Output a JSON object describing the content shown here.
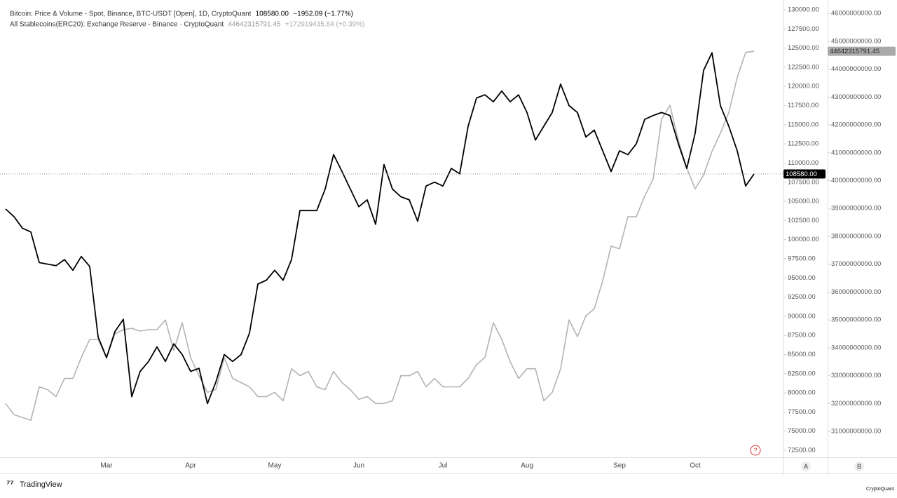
{
  "chart_data": {
    "type": "line",
    "series": [
      {
        "name": "Bitcoin: Price & Volume - Spot, Binance, BTC-USDT [Open], 1D, CryptoQuant",
        "last_label": "108580.00",
        "change": "−1952.09 (−1.77%)",
        "color": "#000000",
        "axis": "y",
        "values": [
          104000,
          103000,
          101500,
          101000,
          97000,
          96800,
          96600,
          97400,
          96000,
          97800,
          96500,
          87300,
          84600,
          88000,
          89600,
          79500,
          82800,
          84100,
          86000,
          84100,
          86400,
          85000,
          82800,
          83200,
          78600,
          81400,
          85000,
          84100,
          85000,
          87800,
          94200,
          94700,
          96000,
          94700,
          97400,
          103800,
          103800,
          103800,
          106600,
          111100,
          108900,
          106600,
          104300,
          105200,
          102000,
          109800,
          106600,
          105600,
          105200,
          102400,
          107000,
          107500,
          107000,
          109300,
          108600,
          114800,
          118500,
          118900,
          118000,
          119400,
          118000,
          118900,
          116600,
          113000,
          114800,
          116600,
          120300,
          117500,
          116600,
          113400,
          114300,
          111600,
          108900,
          111600,
          111100,
          112500,
          115700,
          116200,
          116600,
          116200,
          112500,
          109300,
          113900,
          122100,
          124400,
          117500,
          114800,
          111600,
          107000,
          108580
        ]
      },
      {
        "name": "All Stablecoins(ERC20): Exchange Reserve - Binance · CryptoQuant",
        "last_label": "44642315791.45",
        "change": "+172919435.84 (+0.39%)",
        "color": "#b3b3b3",
        "axis": "y2",
        "values": [
          32000000000,
          31600000000,
          31500000000,
          31400000000,
          32600000000,
          32500000000,
          32250000000,
          32900000000,
          32900000000,
          33650000000,
          34300000000,
          34300000000,
          33650000000,
          34500000000,
          34650000000,
          34700000000,
          34600000000,
          34650000000,
          34650000000,
          35000000000,
          33900000000,
          34900000000,
          33650000000,
          33000000000,
          32400000000,
          32500000000,
          33650000000,
          32900000000,
          32750000000,
          32600000000,
          32250000000,
          32250000000,
          32400000000,
          32100000000,
          33250000000,
          33000000000,
          33150000000,
          32600000000,
          32500000000,
          33150000000,
          32750000000,
          32500000000,
          32150000000,
          32250000000,
          32000000000,
          32000000000,
          32100000000,
          33000000000,
          33000000000,
          33150000000,
          32600000000,
          32900000000,
          32600000000,
          32600000000,
          32600000000,
          32900000000,
          33400000000,
          33650000000,
          34900000000,
          34300000000,
          33500000000,
          32900000000,
          33250000000,
          33250000000,
          32100000000,
          32400000000,
          33250000000,
          35000000000,
          34400000000,
          35150000000,
          35400000000,
          36400000000,
          37650000000,
          37550000000,
          38700000000,
          38700000000,
          39450000000,
          40050000000,
          42200000000,
          42700000000,
          41450000000,
          40450000000,
          39700000000,
          40200000000,
          41050000000,
          41700000000,
          42450000000,
          43700000000,
          44600000000,
          44642315791.45
        ]
      }
    ],
    "categories": [
      null,
      null,
      null,
      null,
      null,
      null,
      null,
      null,
      null,
      null,
      null,
      null,
      "Mar",
      null,
      null,
      null,
      null,
      null,
      null,
      null,
      null,
      null,
      "Apr",
      null,
      null,
      null,
      null,
      null,
      null,
      null,
      null,
      null,
      "May",
      null,
      null,
      null,
      null,
      null,
      null,
      null,
      null,
      null,
      "Jun",
      null,
      null,
      null,
      null,
      null,
      null,
      null,
      null,
      null,
      "Jul",
      null,
      null,
      null,
      null,
      null,
      null,
      null,
      null,
      null,
      "Aug",
      null,
      null,
      null,
      null,
      null,
      null,
      null,
      null,
      null,
      null,
      "Sep",
      null,
      null,
      null,
      null,
      null,
      null,
      null,
      null,
      "Oct",
      null,
      null,
      null,
      null,
      null,
      null,
      null
    ],
    "ylim": [
      71585,
      130550
    ],
    "yticks": [
      {
        "value": 130000,
        "label": "130000.00"
      },
      {
        "value": 127500,
        "label": "127500.00"
      },
      {
        "value": 125000,
        "label": "125000.00"
      },
      {
        "value": 122500,
        "label": "122500.00"
      },
      {
        "value": 120000,
        "label": "120000.00"
      },
      {
        "value": 117500,
        "label": "117500.00"
      },
      {
        "value": 115000,
        "label": "115000.00"
      },
      {
        "value": 112500,
        "label": "112500.00"
      },
      {
        "value": 110000,
        "label": "110000.00"
      },
      {
        "value": 107500,
        "label": "107500.00"
      },
      {
        "value": 105000,
        "label": "105000.00"
      },
      {
        "value": 102500,
        "label": "102500.00"
      },
      {
        "value": 100000,
        "label": "100000.00"
      },
      {
        "value": 97500,
        "label": "97500.00"
      },
      {
        "value": 95000,
        "label": "95000.00"
      },
      {
        "value": 92500,
        "label": "92500.00"
      },
      {
        "value": 90000,
        "label": "90000.00"
      },
      {
        "value": 87500,
        "label": "87500.00"
      },
      {
        "value": 85000,
        "label": "85000.00"
      },
      {
        "value": 82500,
        "label": "82500.00"
      },
      {
        "value": 80000,
        "label": "80000.00"
      },
      {
        "value": 77500,
        "label": "77500.00"
      },
      {
        "value": 75000,
        "label": "75000.00"
      },
      {
        "value": 72500,
        "label": "72500.00"
      }
    ],
    "y2lim": [
      30070000000,
      46280000000
    ],
    "y2ticks": [
      {
        "value": 46000000000,
        "label": "46000000000.00"
      },
      {
        "value": 45000000000,
        "label": "45000000000.00"
      },
      {
        "value": 44000000000,
        "label": "44000000000.00"
      },
      {
        "value": 43000000000,
        "label": "43000000000.00"
      },
      {
        "value": 42000000000,
        "label": "42000000000.00"
      },
      {
        "value": 41000000000,
        "label": "41000000000.00"
      },
      {
        "value": 40000000000,
        "label": "40000000000.00"
      },
      {
        "value": 39000000000,
        "label": "39000000000.00"
      },
      {
        "value": 38000000000,
        "label": "38000000000.00"
      },
      {
        "value": 37000000000,
        "label": "37000000000.00"
      },
      {
        "value": 36000000000,
        "label": "36000000000.00"
      },
      {
        "value": 35000000000,
        "label": "35000000000.00"
      },
      {
        "value": 34000000000,
        "label": "34000000000.00"
      },
      {
        "value": 33000000000,
        "label": "33000000000.00"
      },
      {
        "value": 32000000000,
        "label": "32000000000.00"
      },
      {
        "value": 31000000000,
        "label": "31000000000.00"
      }
    ],
    "grid": false
  },
  "footer": {
    "brand": "TradingView",
    "scale_a": "A",
    "scale_b": "B",
    "source": "CryptoQuant",
    "help": "?"
  }
}
